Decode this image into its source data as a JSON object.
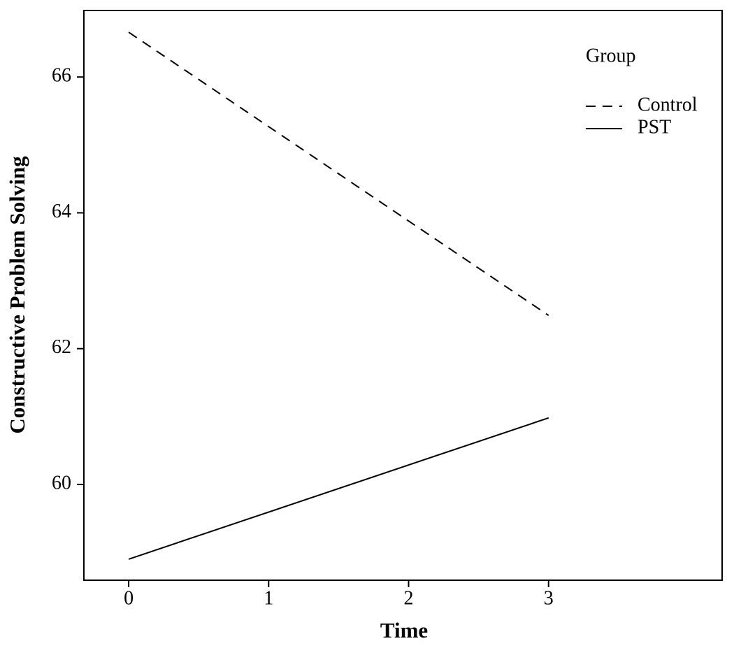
{
  "chart_data": {
    "type": "line",
    "x_label": "Time",
    "y_label": "Constructive Problem Solving",
    "legend_title": "Group",
    "legend_position": "top-right",
    "x": [
      0,
      3
    ],
    "series": [
      {
        "name": "Control",
        "color": "#000000",
        "dash": "dashed",
        "values": [
          66.66,
          62.49
        ]
      },
      {
        "name": "PST",
        "color": "#000000",
        "dash": "solid",
        "values": [
          58.9,
          60.98
        ]
      }
    ],
    "xlim": [
      -0.32,
      4.24
    ],
    "xticks": [
      0,
      1,
      2,
      3
    ],
    "ylim": [
      58.59,
      66.98
    ],
    "yticks": [
      60,
      62,
      64,
      66
    ],
    "grid": false
  }
}
